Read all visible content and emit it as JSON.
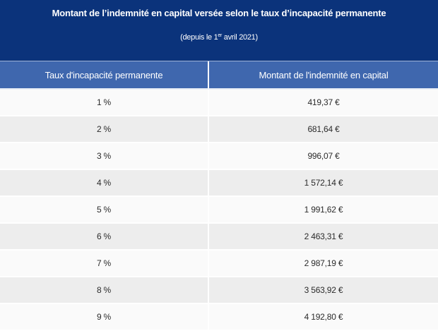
{
  "caption": {
    "title": "Montant de l’indemnité en capital versée selon le taux d’incapacité permanente",
    "subtitle_prefix": "(depuis le 1",
    "subtitle_sup": "er",
    "subtitle_suffix": " avril 2021)"
  },
  "table": {
    "headers": [
      "Taux d'incapacité permanente",
      "Montant de l'indemnité en capital"
    ],
    "rows": [
      [
        "1 %",
        "419,37 €"
      ],
      [
        "2 %",
        "681,64 €"
      ],
      [
        "3 %",
        "996,07 €"
      ],
      [
        "4 %",
        "1 572,14 €"
      ],
      [
        "5 %",
        "1 991,62 €"
      ],
      [
        "6 %",
        "2 463,31 €"
      ],
      [
        "7 %",
        "2 987,19 €"
      ],
      [
        "8 %",
        "3 563,92 €"
      ],
      [
        "9 %",
        "4 192,80 €"
      ]
    ]
  },
  "colors": {
    "caption_bg": "#0b337b",
    "header_bg": "#3f67ae",
    "row_odd": "#fafafa",
    "row_even": "#ededed"
  }
}
